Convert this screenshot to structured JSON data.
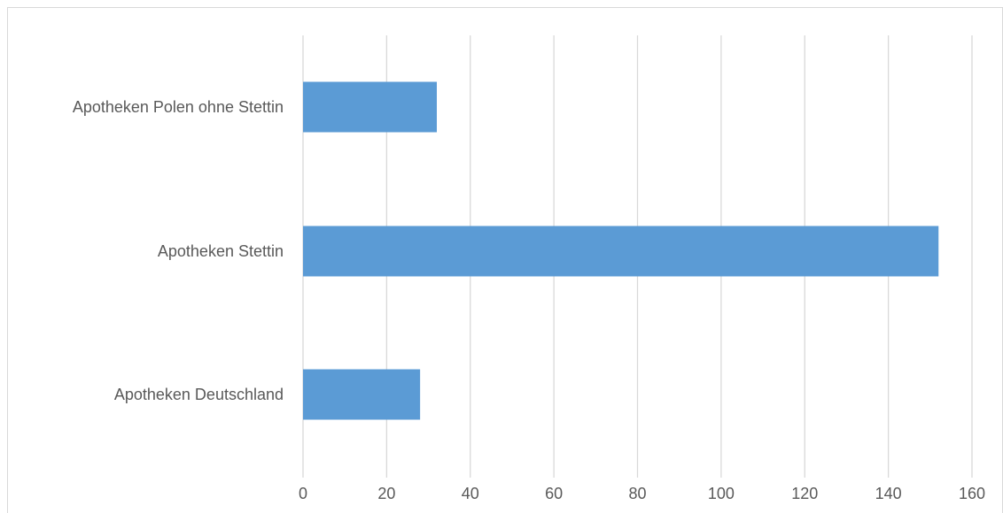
{
  "chart_data": {
    "type": "bar",
    "orientation": "horizontal",
    "categories": [
      "Apotheken Polen ohne Stettin",
      "Apotheken Stettin",
      "Apotheken Deutschland"
    ],
    "values": [
      32,
      152,
      28
    ],
    "xlim": [
      0,
      160
    ],
    "x_ticks": [
      "0",
      "20",
      "40",
      "60",
      "80",
      "100",
      "120",
      "140",
      "160"
    ],
    "grid": true,
    "legend": "none",
    "bar_color": "#5b9bd5",
    "grid_color": "#d9d9d9"
  }
}
